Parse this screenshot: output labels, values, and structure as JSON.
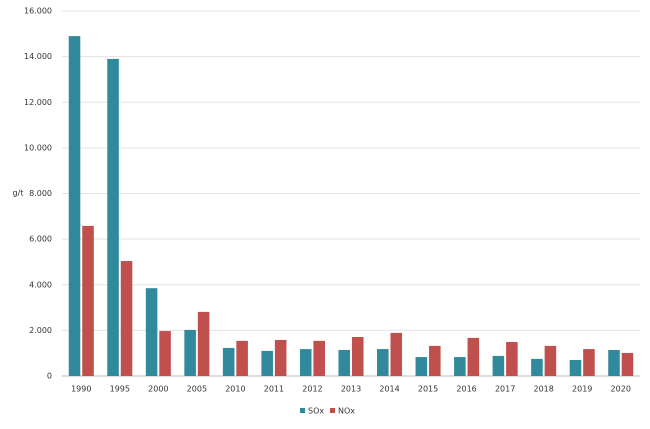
{
  "chart_data": {
    "type": "bar",
    "y_label": "g/t",
    "categories": [
      "1990",
      "1995",
      "2000",
      "2005",
      "2010",
      "2011",
      "2012",
      "2013",
      "2014",
      "2015",
      "2016",
      "2017",
      "2018",
      "2019",
      "2020"
    ],
    "series": [
      {
        "name": "SOx",
        "color": "#318a9c",
        "values": [
          14900,
          13900,
          3850,
          2020,
          1230,
          1100,
          1180,
          1140,
          1180,
          830,
          830,
          880,
          750,
          700,
          1140
        ]
      },
      {
        "name": "NOx",
        "color": "#c0504d",
        "values": [
          6580,
          5040,
          1970,
          2810,
          1540,
          1580,
          1540,
          1710,
          1890,
          1320,
          1670,
          1490,
          1320,
          1180,
          1010
        ]
      }
    ],
    "ylim": [
      0,
      16000
    ],
    "yticks": [
      0,
      {
        "value": 2000,
        "label": "2.000"
      },
      {
        "value": 4000,
        "label": "4.000"
      },
      {
        "value": 6000,
        "label": "6.000"
      },
      {
        "value": 8000,
        "label": "8.000"
      },
      {
        "value": 10000,
        "label": "10.000"
      },
      {
        "value": 12000,
        "label": "12.000"
      },
      {
        "value": 14000,
        "label": "14.000"
      },
      {
        "value": 16000,
        "label": "16.000"
      }
    ],
    "grid": true,
    "legend": "bottom"
  }
}
